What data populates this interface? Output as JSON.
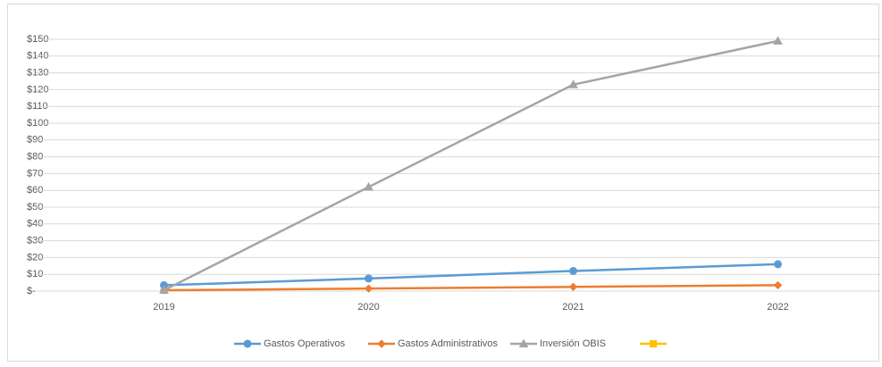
{
  "chart_data": {
    "type": "line",
    "categories": [
      "2019",
      "2020",
      "2021",
      "2022"
    ],
    "series": [
      {
        "name": "Gastos Operativos",
        "color": "#5b9bd5",
        "marker": "circle",
        "values": [
          3.5,
          7.5,
          12,
          16
        ]
      },
      {
        "name": "Gastos Administrativos",
        "color": "#ed7d31",
        "marker": "diamond",
        "values": [
          0.5,
          1.5,
          2.5,
          3.5
        ]
      },
      {
        "name": "Inversión OBIS",
        "color": "#a5a5a5",
        "marker": "triangle",
        "values": [
          0.5,
          62,
          123,
          149
        ]
      },
      {
        "name": null,
        "color": "#ffc000",
        "marker": "square",
        "values": [
          null,
          null,
          null,
          null
        ]
      }
    ],
    "ylim": [
      0,
      150
    ],
    "yticks": [
      {
        "value": 0,
        "label": "$-"
      },
      {
        "value": 10,
        "label": "$10"
      },
      {
        "value": 20,
        "label": "$20"
      },
      {
        "value": 30,
        "label": "$30"
      },
      {
        "value": 40,
        "label": "$40"
      },
      {
        "value": 50,
        "label": "$50"
      },
      {
        "value": 60,
        "label": "$60"
      },
      {
        "value": 70,
        "label": "$70"
      },
      {
        "value": 80,
        "label": "$80"
      },
      {
        "value": 90,
        "label": "$90"
      },
      {
        "value": 100,
        "label": "$100"
      },
      {
        "value": 110,
        "label": "$110"
      },
      {
        "value": 120,
        "label": "$120"
      },
      {
        "value": 130,
        "label": "$130"
      },
      {
        "value": 140,
        "label": "$140"
      },
      {
        "value": 150,
        "label": "$150"
      }
    ],
    "grid": true,
    "legend": "bottom"
  }
}
